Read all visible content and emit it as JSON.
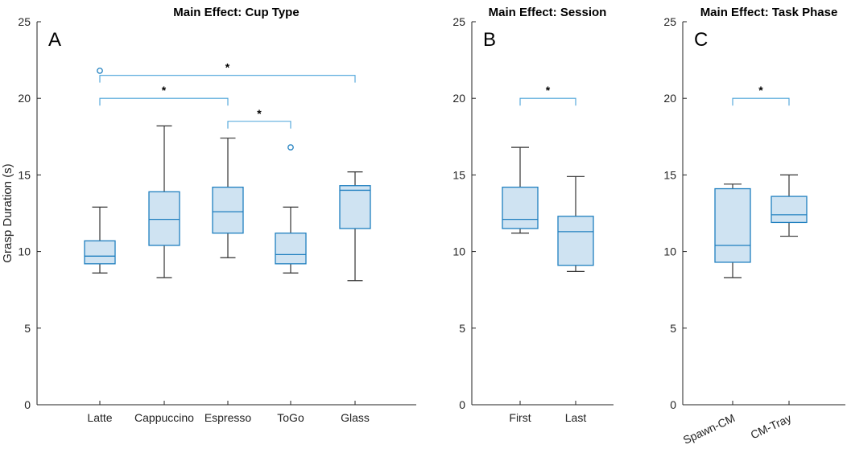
{
  "chart_data": [
    {
      "type": "box",
      "panel": "A",
      "title": "Main Effect: Cup Type",
      "ylabel": "Grasp Duration (s)",
      "ylim": [
        0,
        25
      ],
      "yticks": [
        0,
        5,
        10,
        15,
        20,
        25
      ],
      "categories": [
        "Latte",
        "Cappuccino",
        "Espresso",
        "ToGo",
        "Glass"
      ],
      "boxes": [
        {
          "min": 8.6,
          "q1": 9.2,
          "median": 9.7,
          "q3": 10.7,
          "max": 12.9,
          "outliers": [
            21.8
          ]
        },
        {
          "min": 8.3,
          "q1": 10.4,
          "median": 12.1,
          "q3": 13.9,
          "max": 18.2,
          "outliers": []
        },
        {
          "min": 9.6,
          "q1": 11.2,
          "median": 12.6,
          "q3": 14.2,
          "max": 17.4,
          "outliers": []
        },
        {
          "min": 8.6,
          "q1": 9.2,
          "median": 9.8,
          "q3": 11.2,
          "max": 12.9,
          "outliers": [
            16.8
          ]
        },
        {
          "min": 8.1,
          "q1": 11.5,
          "median": 14.0,
          "q3": 14.3,
          "max": 15.2,
          "outliers": []
        }
      ],
      "significance": [
        {
          "from": "Latte",
          "to": "Glass",
          "y": 21.5,
          "label": "*"
        },
        {
          "from": "Latte",
          "to": "Espresso",
          "y": 20.0,
          "label": "*"
        },
        {
          "from": "Espresso",
          "to": "ToGo",
          "y": 18.5,
          "label": "*"
        }
      ]
    },
    {
      "type": "box",
      "panel": "B",
      "title": "Main Effect: Session",
      "ylim": [
        0,
        25
      ],
      "yticks": [
        0,
        5,
        10,
        15,
        20,
        25
      ],
      "categories": [
        "First",
        "Last"
      ],
      "boxes": [
        {
          "min": 11.2,
          "q1": 11.5,
          "median": 12.1,
          "q3": 14.2,
          "max": 16.8,
          "outliers": []
        },
        {
          "min": 8.7,
          "q1": 9.1,
          "median": 11.3,
          "q3": 12.3,
          "max": 14.9,
          "outliers": []
        }
      ],
      "significance": [
        {
          "from": "First",
          "to": "Last",
          "y": 20.0,
          "label": "*"
        }
      ]
    },
    {
      "type": "box",
      "panel": "C",
      "title": "Main Effect: Task Phase",
      "ylim": [
        0,
        25
      ],
      "yticks": [
        0,
        5,
        10,
        15,
        20,
        25
      ],
      "categories": [
        "Spawn-CM",
        "CM-Tray"
      ],
      "boxes": [
        {
          "min": 8.3,
          "q1": 9.3,
          "median": 10.4,
          "q3": 14.1,
          "max": 14.4,
          "outliers": []
        },
        {
          "min": 11.0,
          "q1": 11.9,
          "median": 12.4,
          "q3": 13.6,
          "max": 15.0,
          "outliers": []
        }
      ],
      "significance": [
        {
          "from": "Spawn-CM",
          "to": "CM-Tray",
          "y": 20.0,
          "label": "*"
        }
      ]
    }
  ]
}
